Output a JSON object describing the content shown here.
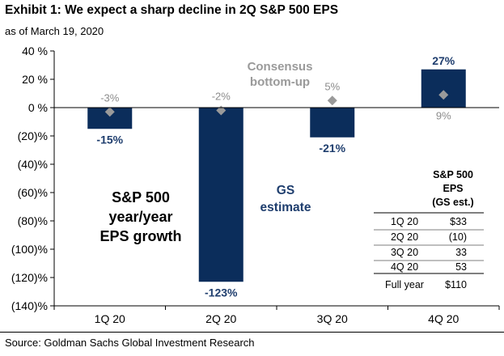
{
  "title": "Exhibit 1: We expect a sharp decline in 2Q S&P 500 EPS",
  "subtitle": "as of March 19,  2020",
  "source": "Source: Goldman Sachs Global Investment Research",
  "colors": {
    "bar": "#0b2d5b",
    "consensus": "#9a9a9a",
    "label": "#1f3e6e",
    "text": "#000000"
  },
  "chart_data": {
    "type": "bar",
    "categories": [
      "1Q 20",
      "2Q 20",
      "3Q 20",
      "4Q 20"
    ],
    "series": [
      {
        "name": "GS estimate",
        "values": [
          -15,
          -123,
          -21,
          27
        ],
        "labels": [
          "-15%",
          "-123%",
          "-21%",
          "27%"
        ]
      },
      {
        "name": "Consensus bottom-up",
        "values": [
          -3,
          -2,
          5,
          9
        ],
        "labels": [
          "-3%",
          "-2%",
          "5%",
          "9%"
        ]
      }
    ],
    "ylim": [
      -140,
      40
    ],
    "yticks": [
      40,
      20,
      0,
      -20,
      -40,
      -60,
      -80,
      -100,
      -120,
      -140
    ],
    "ytick_labels": [
      "40 %",
      "20 %",
      "0 %",
      "(20)%",
      "(40)%",
      "(60)%",
      "(80)%",
      "(100)%",
      "(120)%",
      "(140)%"
    ],
    "grid": false,
    "annotations": {
      "consensus_line1": "Consensus",
      "consensus_line2": "bottom-up",
      "gs_line1": "GS",
      "gs_line2": "estimate",
      "growth_line1": "S&P 500",
      "growth_line2": "year/year",
      "growth_line3": "EPS growth"
    },
    "eps_table": {
      "header": [
        "S&P 500",
        "EPS",
        "(GS est.)"
      ],
      "rows": [
        {
          "period": "1Q 20",
          "value": "$33"
        },
        {
          "period": "2Q 20",
          "value": "(10)"
        },
        {
          "period": "3Q 20",
          "value": "33"
        },
        {
          "period": "4Q 20",
          "value": "53"
        },
        {
          "period": "Full year",
          "value": "$110"
        }
      ]
    }
  }
}
